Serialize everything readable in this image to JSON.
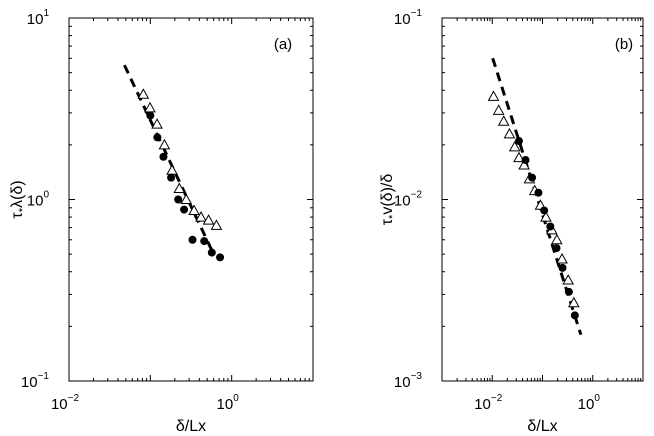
{
  "chart_data": [
    {
      "type": "scatter",
      "panel_label": "(a)",
      "xlabel": "δ/Lx",
      "ylabel": "τ*λ(δ)",
      "ylabel_parts": {
        "pre": "τ",
        "sub": "*",
        "post": "λ(δ)"
      },
      "xscale": "log",
      "yscale": "log",
      "xlim": [
        0.01,
        10
      ],
      "ylim": [
        0.1,
        10
      ],
      "xticks": [
        {
          "value": 0.01,
          "base": "10",
          "exp": "−2"
        },
        {
          "value": 1,
          "base": "10",
          "exp": "0"
        }
      ],
      "yticks": [
        {
          "value": 0.1,
          "base": "10",
          "exp": "−1"
        },
        {
          "value": 1,
          "base": "10",
          "exp": "0"
        },
        {
          "value": 10,
          "base": "10",
          "exp": "1"
        }
      ],
      "series": [
        {
          "marker": "triangle-open",
          "x": [
            0.082,
            0.099,
            0.121,
            0.149,
            0.185,
            0.227,
            0.276,
            0.345,
            0.42,
            0.52,
            0.65
          ],
          "y": [
            3.8,
            3.2,
            2.6,
            2.0,
            1.45,
            1.15,
            1.0,
            0.87,
            0.8,
            0.77,
            0.72
          ]
        },
        {
          "marker": "circle-filled",
          "x": [
            0.1,
            0.122,
            0.145,
            0.18,
            0.22,
            0.26,
            0.33,
            0.46,
            0.57,
            0.72
          ],
          "y": [
            2.9,
            2.2,
            1.72,
            1.32,
            1.0,
            0.88,
            0.6,
            0.59,
            0.51,
            0.48
          ]
        }
      ],
      "fit_line": {
        "x": [
          0.048,
          0.6
        ],
        "y": [
          5.5,
          0.5
        ]
      }
    },
    {
      "type": "scatter",
      "panel_label": "(b)",
      "xlabel": "δ/Lx",
      "ylabel": "τ*v(δ)/δ",
      "ylabel_parts": {
        "pre": "τ",
        "sub": "*",
        "post": "v(δ)/δ"
      },
      "xscale": "log",
      "yscale": "log",
      "xlim": [
        0.001,
        10
      ],
      "ylim": [
        0.001,
        0.1
      ],
      "xticks": [
        {
          "value": 0.01,
          "base": "10",
          "exp": "−2"
        },
        {
          "value": 1,
          "base": "10",
          "exp": "0"
        }
      ],
      "yticks": [
        {
          "value": 0.001,
          "base": "10",
          "exp": "−3"
        },
        {
          "value": 0.01,
          "base": "10",
          "exp": "−2"
        },
        {
          "value": 0.1,
          "base": "10",
          "exp": "−1"
        }
      ],
      "series": [
        {
          "marker": "triangle-open",
          "x": [
            0.0106,
            0.0134,
            0.0169,
            0.022,
            0.028,
            0.034,
            0.043,
            0.055,
            0.07,
            0.091,
            0.117,
            0.153,
            0.193,
            0.245,
            0.325,
            0.42
          ],
          "y": [
            0.037,
            0.031,
            0.027,
            0.023,
            0.0195,
            0.017,
            0.0155,
            0.013,
            0.0112,
            0.0093,
            0.008,
            0.0068,
            0.006,
            0.0047,
            0.0036,
            0.0027
          ]
        },
        {
          "marker": "circle-filled",
          "x": [
            0.034,
            0.046,
            0.062,
            0.083,
            0.108,
            0.143,
            0.19,
            0.25,
            0.335,
            0.44
          ],
          "y": [
            0.021,
            0.0165,
            0.0132,
            0.0109,
            0.0087,
            0.0071,
            0.0054,
            0.0042,
            0.0031,
            0.0023
          ]
        }
      ],
      "fit_line": {
        "x": [
          0.0102,
          0.58
        ],
        "y": [
          0.06,
          0.0018
        ]
      }
    }
  ]
}
